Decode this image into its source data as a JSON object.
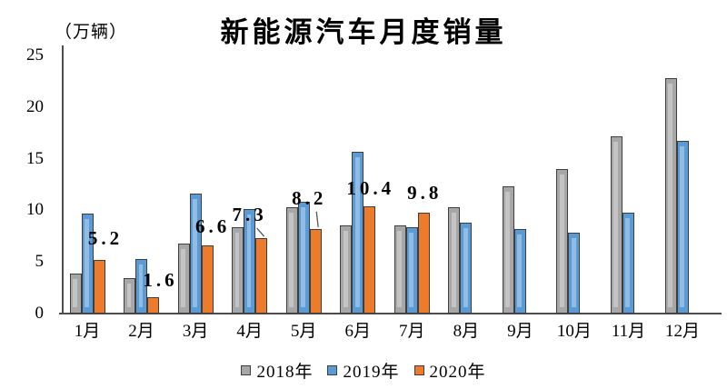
{
  "chart_data": {
    "type": "bar",
    "title": "新能源汽车月度销量",
    "unit_label": "（万辆）",
    "xlabel": "",
    "ylabel": "万辆",
    "ylim": [
      0,
      25
    ],
    "y_ticks": [
      0,
      5,
      10,
      15,
      20,
      25
    ],
    "grid": false,
    "legend_position": "bottom",
    "axis_color": "#4d4d4d",
    "categories": [
      "1月",
      "2月",
      "3月",
      "4月",
      "5月",
      "6月",
      "7月",
      "8月",
      "9月",
      "10月",
      "11月",
      "12月"
    ],
    "series": [
      {
        "name": "2018年",
        "year": "2018",
        "color": "#A7A7A7",
        "highlighted": true,
        "values": [
          3.9,
          3.4,
          6.8,
          8.4,
          10.3,
          8.5,
          8.5,
          10.3,
          12.3,
          14.0,
          17.2,
          22.8
        ]
      },
      {
        "name": "2019年",
        "year": "2019",
        "color": "#5B9BD5",
        "highlighted": true,
        "values": [
          9.7,
          5.3,
          11.6,
          10.1,
          10.8,
          15.7,
          8.4,
          8.8,
          8.2,
          7.8,
          9.8,
          16.7
        ]
      },
      {
        "name": "2020年",
        "year": "2020",
        "color": "#EC7C2B",
        "highlighted": false,
        "values": [
          5.2,
          1.6,
          6.6,
          7.3,
          8.2,
          10.4,
          9.8,
          null,
          null,
          null,
          null,
          null
        ],
        "data_labels": [
          {
            "text": "5.2",
            "month": 0,
            "callout": false
          },
          {
            "text": "1.6",
            "month": 1,
            "callout": false
          },
          {
            "text": "6.6",
            "month": 2,
            "callout": false
          },
          {
            "text": "7.3",
            "month": 3,
            "callout": true
          },
          {
            "text": "8.2",
            "month": 4,
            "callout": true
          },
          {
            "text": "10.4",
            "month": 5,
            "callout": false
          },
          {
            "text": "9.8",
            "month": 6,
            "callout": false
          }
        ]
      }
    ]
  }
}
